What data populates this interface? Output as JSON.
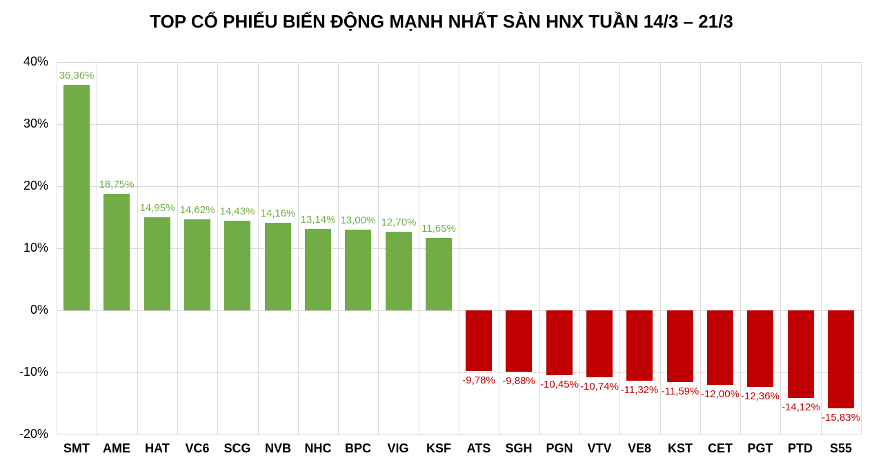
{
  "chart_data": {
    "type": "bar",
    "title": "TOP CỔ PHIẾU BIẾN ĐỘNG MẠNH NHẤT SÀN HNX TUẦN 14/3 – 21/3",
    "categories": [
      "SMT",
      "AME",
      "HAT",
      "VC6",
      "SCG",
      "NVB",
      "NHC",
      "BPC",
      "VIG",
      "KSF",
      "ATS",
      "SGH",
      "PGN",
      "VTV",
      "VE8",
      "KST",
      "CET",
      "PGT",
      "PTD",
      "S55"
    ],
    "values": [
      36.36,
      18.75,
      14.95,
      14.62,
      14.43,
      14.16,
      13.14,
      13.0,
      12.7,
      11.65,
      -9.78,
      -9.88,
      -10.45,
      -10.74,
      -11.32,
      -11.59,
      -12.0,
      -12.36,
      -14.12,
      -15.83
    ],
    "value_labels": [
      "36,36%",
      "18,75%",
      "14,95%",
      "14,62%",
      "14,43%",
      "14,16%",
      "13,14%",
      "13,00%",
      "12,70%",
      "11,65%",
      "-9,78%",
      "-9,88%",
      "-10,45%",
      "-10,74%",
      "-11,32%",
      "-11,59%",
      "-12,00%",
      "-12,36%",
      "-14,12%",
      "-15,83%"
    ],
    "y_ticks": [
      "40%",
      "30%",
      "20%",
      "10%",
      "0%",
      "-10%",
      "-20%"
    ],
    "y_tick_values": [
      40,
      30,
      20,
      10,
      0,
      -10,
      -20
    ],
    "ylim": [
      -20,
      40
    ],
    "xlabel": "",
    "ylabel": "",
    "grid": true,
    "legend": "none",
    "positive_color": "#70AD47",
    "negative_color": "#C00000",
    "gridline_color": "#d9d9d9"
  }
}
